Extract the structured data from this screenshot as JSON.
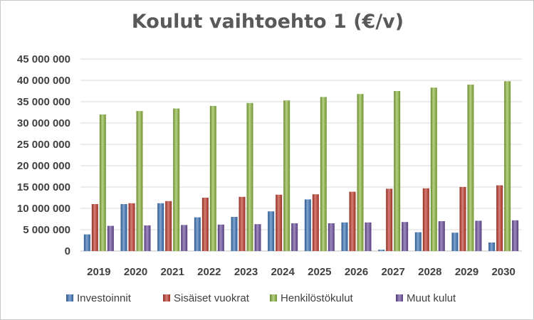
{
  "chart_data": {
    "type": "bar",
    "title": "Koulut vaihtoehto 1 (€/v)",
    "xlabel": "",
    "ylabel": "",
    "ylim": [
      0,
      45000000
    ],
    "yticks": [
      0,
      5000000,
      10000000,
      15000000,
      20000000,
      25000000,
      30000000,
      35000000,
      40000000,
      45000000
    ],
    "ytick_labels": [
      "0",
      "5 000 000",
      "10 000 000",
      "15 000 000",
      "20 000 000",
      "25 000 000",
      "30 000 000",
      "35 000 000",
      "40 000 000",
      "45 000 000"
    ],
    "grid": true,
    "legend_position": "bottom",
    "categories": [
      "2019",
      "2020",
      "2021",
      "2022",
      "2023",
      "2024",
      "2025",
      "2026",
      "2027",
      "2028",
      "2029",
      "2030"
    ],
    "series": [
      {
        "name": "Investoinnit",
        "color": "#3a73b8",
        "values": [
          3900000,
          11000000,
          11200000,
          7900000,
          8000000,
          9300000,
          12100000,
          6700000,
          300000,
          4400000,
          4300000,
          2000000
        ]
      },
      {
        "name": "Sisäiset vuokrat",
        "color": "#c0392b",
        "values": [
          11000000,
          11200000,
          11700000,
          12500000,
          12700000,
          13200000,
          13300000,
          13900000,
          14600000,
          14700000,
          15000000,
          15400000
        ]
      },
      {
        "name": "Henkilöstökulut",
        "color": "#8db83f",
        "values": [
          32000000,
          32800000,
          33400000,
          34000000,
          34700000,
          35300000,
          36100000,
          36800000,
          37500000,
          38300000,
          39000000,
          39800000
        ]
      },
      {
        "name": "Muut kulut",
        "color": "#6a4c9c",
        "values": [
          5900000,
          6000000,
          6100000,
          6200000,
          6300000,
          6500000,
          6500000,
          6700000,
          6800000,
          7000000,
          7100000,
          7200000
        ]
      }
    ]
  }
}
